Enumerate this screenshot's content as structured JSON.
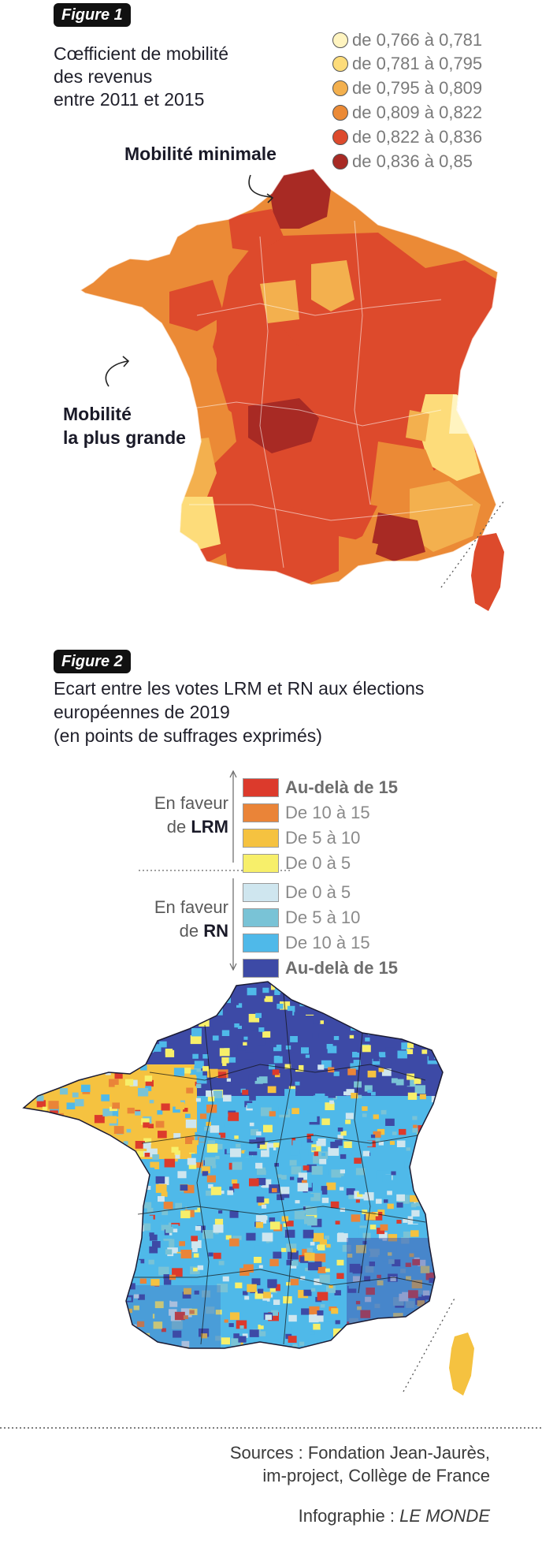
{
  "figure1": {
    "badge": "Figure 1",
    "title_lines": [
      "Cœfficient de mobilité",
      "des revenus",
      "entre 2011 et 2015"
    ],
    "legend": [
      {
        "label": "de 0,766 à 0,781",
        "color": "#fff4c0"
      },
      {
        "label": "de 0,781 à 0,795",
        "color": "#fddc7a"
      },
      {
        "label": "de 0,795 à 0,809",
        "color": "#f3b04e"
      },
      {
        "label": "de 0,809 à 0,822",
        "color": "#eb8a36"
      },
      {
        "label": "de 0,822 à 0,836",
        "color": "#dd4a2c"
      },
      {
        "label": "de 0,836 à 0,85",
        "color": "#a82a24"
      }
    ],
    "callout_min": "Mobilité minimale",
    "callout_max_lines": [
      "Mobilité",
      "la plus grande"
    ]
  },
  "figure2": {
    "badge": "Figure 2",
    "title_lines": [
      "Ecart entre les votes LRM et RN aux élections",
      "européennes de 2019",
      "(en points de suffrages exprimés)"
    ],
    "favor_lrm": {
      "prefix_line1": "En faveur",
      "prefix_line2": "de ",
      "party": "LRM"
    },
    "favor_rn": {
      "prefix_line1": "En faveur",
      "prefix_line2": "de ",
      "party": "RN"
    },
    "legend": [
      {
        "label": "Au-delà de 15",
        "color": "#dc3a2c",
        "strong": true
      },
      {
        "label": "De 10 à 15",
        "color": "#ea8438",
        "strong": false
      },
      {
        "label": "De 5 à 10",
        "color": "#f5c240",
        "strong": false
      },
      {
        "label": "De 0 à 5",
        "color": "#f7ef6a",
        "strong": false
      },
      {
        "label": "De 0 à 5",
        "color": "#cfe6ef",
        "strong": false
      },
      {
        "label": "De 5 à 10",
        "color": "#79c3d6",
        "strong": false
      },
      {
        "label": "De 10 à 15",
        "color": "#4fb9e9",
        "strong": false
      },
      {
        "label": "Au-delà de 15",
        "color": "#3d4aa6",
        "strong": true
      }
    ]
  },
  "footer": {
    "sources_lines": [
      "Sources : Fondation Jean-Jaurès,",
      "im-project, Collège de France"
    ],
    "credit_prefix": "Infographie : ",
    "credit_name": "LE MONDE"
  }
}
